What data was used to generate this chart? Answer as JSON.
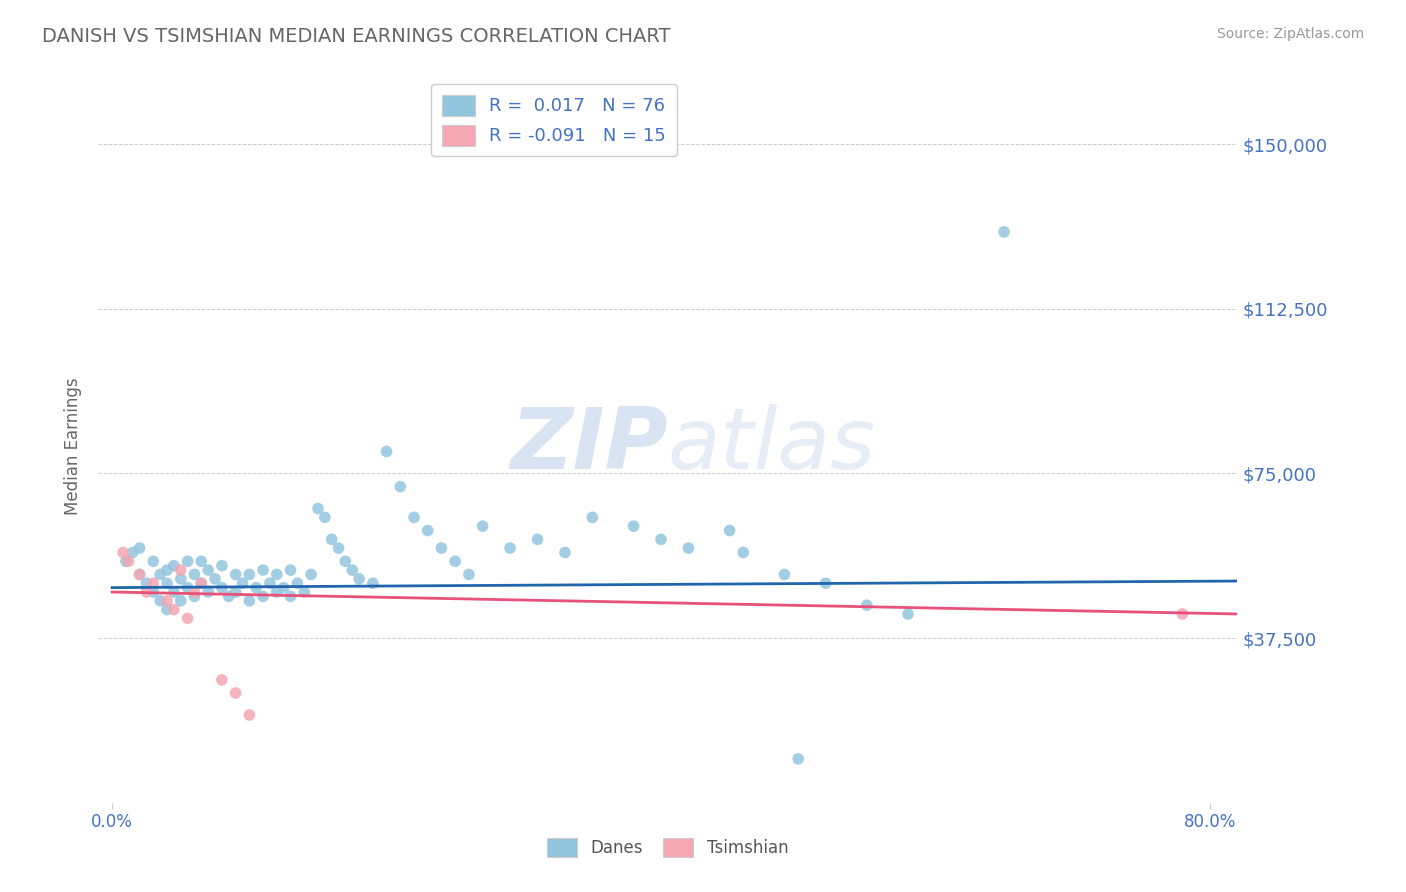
{
  "title": "DANISH VS TSIMSHIAN MEDIAN EARNINGS CORRELATION CHART",
  "source": "Source: ZipAtlas.com",
  "ylabel": "Median Earnings",
  "xlim": [
    -0.01,
    0.82
  ],
  "ylim": [
    0,
    162500
  ],
  "yticks": [
    0,
    37500,
    75000,
    112500,
    150000
  ],
  "ytick_labels": [
    "",
    "$37,500",
    "$75,000",
    "$112,500",
    "$150,000"
  ],
  "xticks": [
    0.0,
    0.8
  ],
  "xtick_labels": [
    "0.0%",
    "80.0%"
  ],
  "danes_color": "#92c5de",
  "tsimshian_color": "#f4a7b2",
  "danes_line_color": "#2166ac",
  "tsimshian_line_color": "#e8517a",
  "danes_R": 0.017,
  "danes_N": 76,
  "tsimshian_R": -0.091,
  "tsimshian_N": 15,
  "background_color": "#ffffff",
  "grid_color": "#aaaaaa",
  "title_color": "#666666",
  "axis_label_color": "#666666",
  "tick_label_color": "#4472c4",
  "watermark_color": "#dde8f5",
  "legend_label_danes": "Danes",
  "legend_label_tsimshian": "Tsimshian",
  "danes_x": [
    0.01,
    0.015,
    0.02,
    0.02,
    0.025,
    0.03,
    0.03,
    0.035,
    0.035,
    0.04,
    0.04,
    0.04,
    0.045,
    0.045,
    0.05,
    0.05,
    0.055,
    0.055,
    0.06,
    0.06,
    0.065,
    0.065,
    0.07,
    0.07,
    0.075,
    0.08,
    0.08,
    0.085,
    0.09,
    0.09,
    0.095,
    0.1,
    0.1,
    0.105,
    0.11,
    0.11,
    0.115,
    0.12,
    0.12,
    0.125,
    0.13,
    0.13,
    0.135,
    0.14,
    0.145,
    0.15,
    0.155,
    0.16,
    0.165,
    0.17,
    0.175,
    0.18,
    0.19,
    0.2,
    0.21,
    0.22,
    0.23,
    0.24,
    0.25,
    0.26,
    0.27,
    0.29,
    0.31,
    0.33,
    0.35,
    0.38,
    0.4,
    0.42,
    0.45,
    0.46,
    0.49,
    0.5,
    0.52,
    0.55,
    0.58,
    0.65
  ],
  "danes_y": [
    55000,
    57000,
    52000,
    58000,
    50000,
    48000,
    55000,
    46000,
    52000,
    44000,
    50000,
    53000,
    48000,
    54000,
    46000,
    51000,
    49000,
    55000,
    47000,
    52000,
    50000,
    55000,
    48000,
    53000,
    51000,
    49000,
    54000,
    47000,
    52000,
    48000,
    50000,
    46000,
    52000,
    49000,
    47000,
    53000,
    50000,
    48000,
    52000,
    49000,
    47000,
    53000,
    50000,
    48000,
    52000,
    67000,
    65000,
    60000,
    58000,
    55000,
    53000,
    51000,
    50000,
    80000,
    72000,
    65000,
    62000,
    58000,
    55000,
    52000,
    63000,
    58000,
    60000,
    57000,
    65000,
    63000,
    60000,
    58000,
    62000,
    57000,
    52000,
    10000,
    50000,
    45000,
    43000,
    130000
  ],
  "tsimshian_x": [
    0.008,
    0.012,
    0.02,
    0.025,
    0.03,
    0.04,
    0.045,
    0.05,
    0.055,
    0.06,
    0.065,
    0.08,
    0.09,
    0.1,
    0.78
  ],
  "tsimshian_y": [
    57000,
    55000,
    52000,
    48000,
    50000,
    46000,
    44000,
    53000,
    42000,
    48000,
    50000,
    28000,
    25000,
    20000,
    43000
  ],
  "danes_trend_x": [
    0.0,
    0.82
  ],
  "danes_trend_y": [
    49000,
    50500
  ],
  "tsimshian_trend_x": [
    0.0,
    0.82
  ],
  "tsimshian_trend_y": [
    48000,
    43000
  ]
}
